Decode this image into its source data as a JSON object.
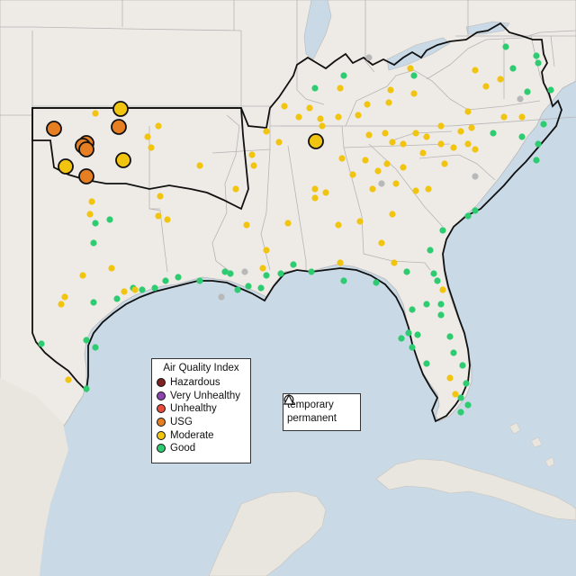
{
  "aqi_legend": {
    "title": "Air Quality Index",
    "items": [
      {
        "label": "Hazardous",
        "color": "#7e2121"
      },
      {
        "label": "Very Unhealthy",
        "color": "#8e44ad"
      },
      {
        "label": "Unhealthy",
        "color": "#e74c3c"
      },
      {
        "label": "USG",
        "color": "#e67e22"
      },
      {
        "label": "Moderate",
        "color": "#f1c40f"
      },
      {
        "label": "Good",
        "color": "#2ecc71"
      }
    ]
  },
  "monitor_type_legend": {
    "items": [
      {
        "label": "temporary",
        "symbol": "circle"
      },
      {
        "label": "permanent",
        "symbol": "triangle"
      }
    ]
  },
  "colors": {
    "ocean": "#c9d9e6",
    "land": "#eeebe7",
    "no_data": "#b8b8b8"
  }
}
